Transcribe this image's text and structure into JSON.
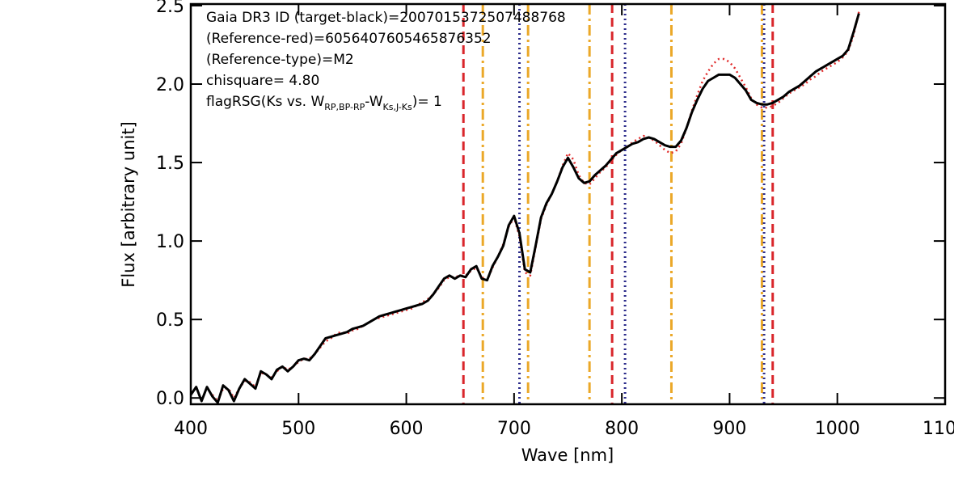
{
  "chart_data": {
    "type": "line",
    "x_label": "Wave [nm]",
    "y_label": "Flux [arbitrary unit]",
    "xlim": [
      400,
      1100
    ],
    "ylim": [
      -0.04,
      2.51
    ],
    "xticks": [
      400,
      500,
      600,
      700,
      800,
      900,
      1000,
      1100
    ],
    "yticks": [
      {
        "value": 0,
        "label": "0.0"
      },
      0.5,
      {
        "value": 1,
        "label": "1.0"
      },
      1.5,
      {
        "value": 2,
        "label": "2.0"
      },
      2.5
    ],
    "grid": false,
    "annotations": [
      "Gaia DR3 ID (target-black)=2007015372507488768",
      "(Reference-red)=6056407605465876352",
      "(Reference-type)=M2",
      "chisquare= 4.80",
      {
        "parts": [
          {
            "text": "flagRSG(Ks vs. W",
            "sub": false
          },
          {
            "text": "RP,BP-RP",
            "sub": true
          },
          {
            "text": "-W",
            "sub": false
          },
          {
            "text": "Ks,J-Ks",
            "sub": true
          },
          {
            "text": ")= 1",
            "sub": false
          }
        ]
      }
    ],
    "reference_lines": [
      {
        "color": "#d9262b",
        "style": "dashed",
        "x": [
          653,
          791,
          940
        ]
      },
      {
        "color": "#eba828",
        "style": "dashdot",
        "x": [
          671,
          713,
          770,
          846,
          930
        ]
      },
      {
        "color": "#2a2a8a",
        "style": "dotted",
        "x": [
          705,
          803,
          932
        ]
      }
    ],
    "x": [
      400,
      405,
      410,
      415,
      420,
      425,
      430,
      435,
      440,
      445,
      450,
      455,
      460,
      465,
      470,
      475,
      480,
      485,
      490,
      495,
      500,
      505,
      510,
      515,
      520,
      525,
      530,
      535,
      540,
      545,
      550,
      555,
      560,
      565,
      570,
      575,
      580,
      585,
      590,
      595,
      600,
      605,
      610,
      615,
      620,
      625,
      630,
      635,
      640,
      645,
      650,
      655,
      660,
      665,
      670,
      675,
      680,
      685,
      690,
      695,
      700,
      705,
      710,
      715,
      720,
      725,
      730,
      735,
      740,
      745,
      750,
      755,
      760,
      765,
      770,
      775,
      780,
      785,
      790,
      795,
      800,
      805,
      810,
      815,
      820,
      825,
      830,
      835,
      840,
      845,
      850,
      855,
      860,
      865,
      870,
      875,
      880,
      885,
      890,
      895,
      900,
      905,
      910,
      915,
      920,
      925,
      930,
      935,
      940,
      945,
      950,
      955,
      960,
      965,
      970,
      975,
      980,
      985,
      990,
      995,
      1000,
      1005,
      1010,
      1015,
      1020
    ],
    "series": [
      {
        "color": "#e02a2a",
        "style": "dotted",
        "width": 2.5,
        "values": [
          null,
          null,
          null,
          null,
          0.02,
          -0.02,
          0.06,
          0.06,
          0.0,
          0.06,
          0.11,
          0.1,
          0.07,
          0.16,
          0.15,
          0.13,
          0.17,
          0.2,
          0.18,
          0.2,
          0.23,
          0.25,
          0.25,
          0.28,
          0.32,
          0.36,
          0.38,
          0.41,
          0.42,
          0.41,
          0.43,
          0.44,
          0.46,
          0.48,
          0.5,
          0.51,
          0.52,
          0.53,
          0.54,
          0.55,
          0.56,
          0.57,
          0.59,
          0.61,
          0.63,
          0.66,
          0.7,
          0.75,
          0.77,
          0.77,
          0.78,
          0.78,
          0.81,
          0.83,
          0.77,
          0.75,
          0.83,
          0.9,
          0.98,
          1.09,
          1.15,
          1.03,
          0.8,
          0.78,
          0.96,
          1.14,
          1.23,
          1.3,
          1.38,
          1.48,
          1.56,
          1.52,
          1.42,
          1.37,
          1.36,
          1.4,
          1.44,
          1.47,
          1.51,
          1.55,
          1.58,
          1.6,
          1.63,
          1.65,
          1.67,
          1.66,
          1.64,
          1.61,
          1.58,
          1.56,
          1.57,
          1.62,
          1.72,
          1.83,
          1.93,
          2.02,
          2.08,
          2.13,
          2.16,
          2.16,
          2.14,
          2.1,
          2.04,
          1.98,
          1.91,
          1.87,
          1.85,
          1.85,
          1.86,
          1.88,
          1.91,
          1.94,
          1.96,
          1.98,
          2.0,
          2.03,
          2.05,
          2.08,
          2.1,
          2.12,
          2.14,
          2.17,
          2.21,
          2.31,
          2.46
        ]
      },
      {
        "color": "#000000",
        "style": "solid",
        "width": 3,
        "values": [
          0.02,
          0.07,
          -0.02,
          0.07,
          0.01,
          -0.03,
          0.08,
          0.05,
          -0.02,
          0.06,
          0.12,
          0.09,
          0.06,
          0.17,
          0.15,
          0.12,
          0.18,
          0.2,
          0.17,
          0.2,
          0.24,
          0.25,
          0.24,
          0.28,
          0.33,
          0.38,
          0.39,
          0.4,
          0.41,
          0.42,
          0.44,
          0.45,
          0.46,
          0.48,
          0.5,
          0.52,
          0.53,
          0.54,
          0.55,
          0.56,
          0.57,
          0.58,
          0.59,
          0.6,
          0.62,
          0.66,
          0.71,
          0.76,
          0.78,
          0.76,
          0.78,
          0.77,
          0.82,
          0.84,
          0.76,
          0.75,
          0.84,
          0.9,
          0.97,
          1.1,
          1.16,
          1.05,
          0.82,
          0.8,
          0.97,
          1.15,
          1.24,
          1.3,
          1.38,
          1.47,
          1.53,
          1.47,
          1.4,
          1.37,
          1.38,
          1.42,
          1.45,
          1.48,
          1.52,
          1.56,
          1.58,
          1.6,
          1.62,
          1.63,
          1.65,
          1.66,
          1.65,
          1.63,
          1.61,
          1.6,
          1.6,
          1.64,
          1.72,
          1.82,
          1.9,
          1.97,
          2.02,
          2.04,
          2.06,
          2.06,
          2.06,
          2.04,
          2.0,
          1.96,
          1.9,
          1.88,
          1.87,
          1.87,
          1.88,
          1.9,
          1.92,
          1.95,
          1.97,
          1.99,
          2.02,
          2.05,
          2.08,
          2.1,
          2.12,
          2.14,
          2.16,
          2.18,
          2.22,
          2.33,
          2.45
        ]
      }
    ]
  }
}
